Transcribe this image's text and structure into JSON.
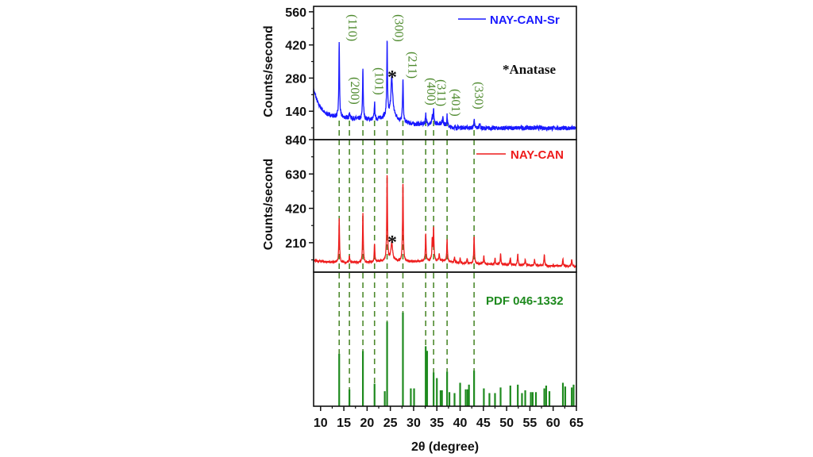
{
  "chart_data": {
    "type": "line",
    "xlabel": "2θ (degree)",
    "xlim": [
      8.5,
      65
    ],
    "xticks": [
      "10",
      "15",
      "20",
      "25",
      "30",
      "35",
      "40",
      "45",
      "50",
      "55",
      "60",
      "65"
    ],
    "colors": {
      "NAY-CAN-Sr": "#1a1aff",
      "NAY-CAN": "#ee1c1c",
      "PDF 046-1332": "#1e8a1e",
      "miller": "#4e8a2e"
    },
    "annotation": "*Anatase",
    "asterisk": "*",
    "anatase_peak": 25.3,
    "panels": [
      {
        "name": "NAY-CAN-Sr",
        "ylabel": "Counts/second",
        "ylim": [
          20,
          583
        ],
        "yticks": [
          "140",
          "280",
          "420",
          "560"
        ],
        "legend": "top-right",
        "baseline": [
          [
            8.5,
            230
          ],
          [
            9.5,
            170
          ],
          [
            11,
            130
          ],
          [
            13,
            118
          ],
          [
            18,
            108
          ],
          [
            22,
            105
          ],
          [
            24,
            118
          ],
          [
            25.5,
            128
          ],
          [
            27,
            100
          ],
          [
            30,
            85
          ],
          [
            36,
            88
          ],
          [
            38,
            72
          ],
          [
            45,
            68
          ],
          [
            55,
            70
          ],
          [
            65,
            68
          ]
        ],
        "peaks": [
          [
            14.0,
            432
          ],
          [
            16.2,
            135
          ],
          [
            19.1,
            321
          ],
          [
            21.6,
            177
          ],
          [
            24.3,
            432
          ],
          [
            25.3,
            281
          ],
          [
            27.7,
            281
          ],
          [
            32.6,
            133
          ],
          [
            34.0,
            115
          ],
          [
            34.3,
            147
          ],
          [
            36.3,
            120
          ],
          [
            37.2,
            122
          ],
          [
            43.0,
            107
          ],
          [
            44.2,
            95
          ]
        ]
      },
      {
        "name": "NAY-CAN",
        "ylabel": "Counts/second",
        "ylim": [
          30,
          840
        ],
        "yticks": [
          "210",
          "420",
          "630",
          "840"
        ],
        "legend": "top-right",
        "baseline": [
          [
            8.5,
            100
          ],
          [
            12,
            90
          ],
          [
            20,
            88
          ],
          [
            24,
            100
          ],
          [
            30,
            95
          ],
          [
            36,
            100
          ],
          [
            40,
            85
          ],
          [
            50,
            75
          ],
          [
            65,
            65
          ]
        ],
        "peaks": [
          [
            14.0,
            355
          ],
          [
            16.2,
            128
          ],
          [
            19.1,
            387
          ],
          [
            21.6,
            203
          ],
          [
            24.3,
            630
          ],
          [
            25.3,
            210
          ],
          [
            27.7,
            586
          ],
          [
            32.6,
            266
          ],
          [
            34.0,
            230
          ],
          [
            34.3,
            300
          ],
          [
            35.5,
            140
          ],
          [
            37.2,
            229
          ],
          [
            38.8,
            120
          ],
          [
            40.0,
            115
          ],
          [
            41.5,
            115
          ],
          [
            43.0,
            250
          ],
          [
            45.1,
            126
          ],
          [
            47.5,
            115
          ],
          [
            48.7,
            142
          ],
          [
            50.8,
            120
          ],
          [
            52.4,
            141
          ],
          [
            54.0,
            110
          ],
          [
            56.0,
            105
          ],
          [
            58.1,
            135
          ],
          [
            62.1,
            113
          ],
          [
            64.0,
            110
          ]
        ]
      },
      {
        "name": "PDF 046-1332",
        "type": "stick",
        "ylim": [
          0,
          143
        ],
        "legend": "top-right",
        "sticks": [
          [
            14.0,
            56
          ],
          [
            16.2,
            18
          ],
          [
            19.1,
            59
          ],
          [
            21.6,
            24
          ],
          [
            23.8,
            16
          ],
          [
            24.3,
            90
          ],
          [
            27.7,
            100
          ],
          [
            29.4,
            19
          ],
          [
            30.1,
            19
          ],
          [
            32.6,
            64
          ],
          [
            32.9,
            59
          ],
          [
            34.3,
            36
          ],
          [
            35.0,
            30
          ],
          [
            35.8,
            17
          ],
          [
            36.1,
            17
          ],
          [
            37.2,
            37
          ],
          [
            37.7,
            15
          ],
          [
            38.8,
            14
          ],
          [
            40.0,
            25
          ],
          [
            41.2,
            18
          ],
          [
            41.6,
            18
          ],
          [
            41.9,
            23
          ],
          [
            43.0,
            38
          ],
          [
            45.1,
            19
          ],
          [
            46.3,
            14
          ],
          [
            47.5,
            14
          ],
          [
            48.7,
            20
          ],
          [
            50.8,
            22
          ],
          [
            52.4,
            23
          ],
          [
            53.3,
            14
          ],
          [
            54.0,
            17
          ],
          [
            55.2,
            15
          ],
          [
            55.6,
            15
          ],
          [
            56.3,
            15
          ],
          [
            58.1,
            19
          ],
          [
            58.5,
            22
          ],
          [
            59.2,
            16
          ],
          [
            62.1,
            25
          ],
          [
            62.6,
            21
          ],
          [
            64.0,
            20
          ],
          [
            64.4,
            23
          ]
        ]
      }
    ],
    "reference_lines": [
      14.0,
      16.2,
      19.1,
      21.6,
      24.3,
      27.7,
      32.6,
      34.3,
      37.2,
      43.0
    ],
    "miller_labels": [
      {
        "label": "(110)",
        "peak": 14.0
      },
      {
        "label": "(200)",
        "peak": 16.2
      },
      {
        "label": "(101)",
        "peak": 21.6
      },
      {
        "label": "(300)",
        "peak": 24.3
      },
      {
        "label": "(211)",
        "peak": 27.7
      },
      {
        "label": "(400)",
        "peak": 32.6
      },
      {
        "label": "(311)",
        "peak": 34.3
      },
      {
        "label": "(401)",
        "peak": 37.2
      },
      {
        "label": "(330)",
        "peak": 43.0
      }
    ]
  }
}
